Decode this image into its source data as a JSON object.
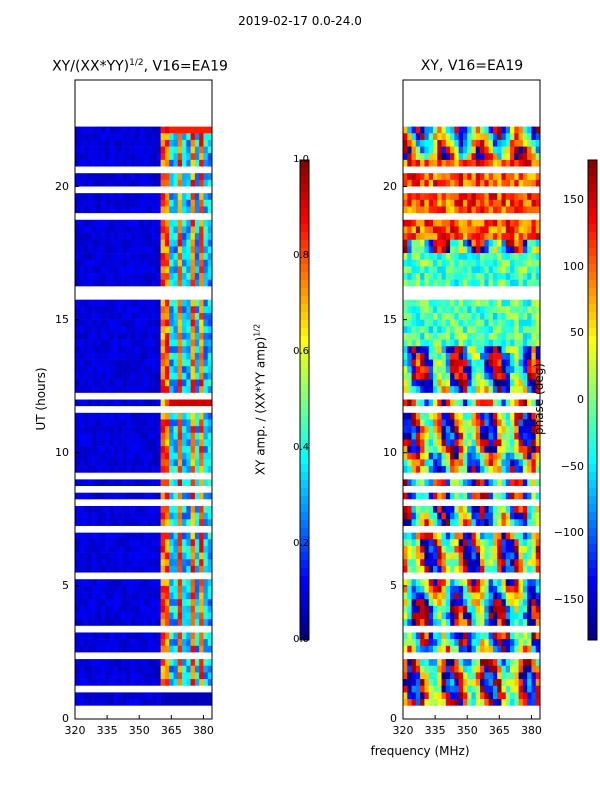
{
  "figure": {
    "suptitle": "2019-02-17 0.0-24.0",
    "xlabel": "frequency (MHz)",
    "ylabel": "UT (hours)"
  },
  "chart_data": [
    {
      "type": "heatmap",
      "title_main": "XY/(XX*YY)",
      "title_exp": "1/2",
      "title_suffix": ", V16=EA19",
      "xlabel": "frequency (MHz)",
      "ylabel": "UT (hours)",
      "xlim": [
        320,
        384
      ],
      "ylim": [
        0,
        24
      ],
      "xticks": [
        "320",
        "335",
        "350",
        "365",
        "380"
      ],
      "xtick_values": [
        320,
        335,
        350,
        365,
        380
      ],
      "yticks": [
        "0",
        "5",
        "10",
        "15",
        "20"
      ],
      "ytick_values": [
        0,
        5,
        10,
        15,
        20
      ],
      "colorbar": {
        "label_main": "XY amp. / (XX*YY amp)",
        "label_exp": "1/2",
        "range": [
          0.0,
          1.0
        ],
        "ticks": [
          "0.0",
          "0.2",
          "0.4",
          "0.6",
          "0.8",
          "1.0"
        ],
        "tick_values": [
          0.0,
          0.2,
          0.4,
          0.6,
          0.8,
          1.0
        ],
        "colormap": "jet"
      },
      "signal_freq_range_mhz": [
        361,
        384
      ],
      "flagged_ut_bands_hours": [
        [
          0.0,
          0.4
        ],
        [
          0.9,
          1.2
        ],
        [
          22.4,
          22.9
        ],
        [
          23.0,
          24.0
        ]
      ],
      "hot_spots": [
        {
          "ut": 11.8,
          "freqs": [
            366,
            371,
            376,
            381
          ],
          "value": 0.92
        },
        {
          "ut": 22.3,
          "freqs": [
            366,
            371,
            376,
            381
          ],
          "value": 0.85
        }
      ]
    },
    {
      "type": "heatmap",
      "title": "XY, V16=EA19",
      "xlabel": "frequency (MHz)",
      "xlim": [
        320,
        384
      ],
      "ylim": [
        0,
        24
      ],
      "xticks": [
        "320",
        "335",
        "350",
        "365",
        "380"
      ],
      "xtick_values": [
        320,
        335,
        350,
        365,
        380
      ],
      "yticks": [
        "0",
        "5",
        "10",
        "15",
        "20"
      ],
      "ytick_values": [
        0,
        5,
        10,
        15,
        20
      ],
      "colorbar": {
        "label": "phase (deg)",
        "range": [
          -180,
          180
        ],
        "ticks": [
          "−150",
          "−100",
          "−50",
          "0",
          "50",
          "100",
          "150"
        ],
        "tick_values": [
          -150,
          -100,
          -50,
          0,
          50,
          100,
          150
        ],
        "colormap": "jet"
      },
      "flagged_ut_bands_hours": [
        [
          0.0,
          0.4
        ],
        [
          22.4,
          22.9
        ],
        [
          23.0,
          24.0
        ]
      ]
    }
  ]
}
